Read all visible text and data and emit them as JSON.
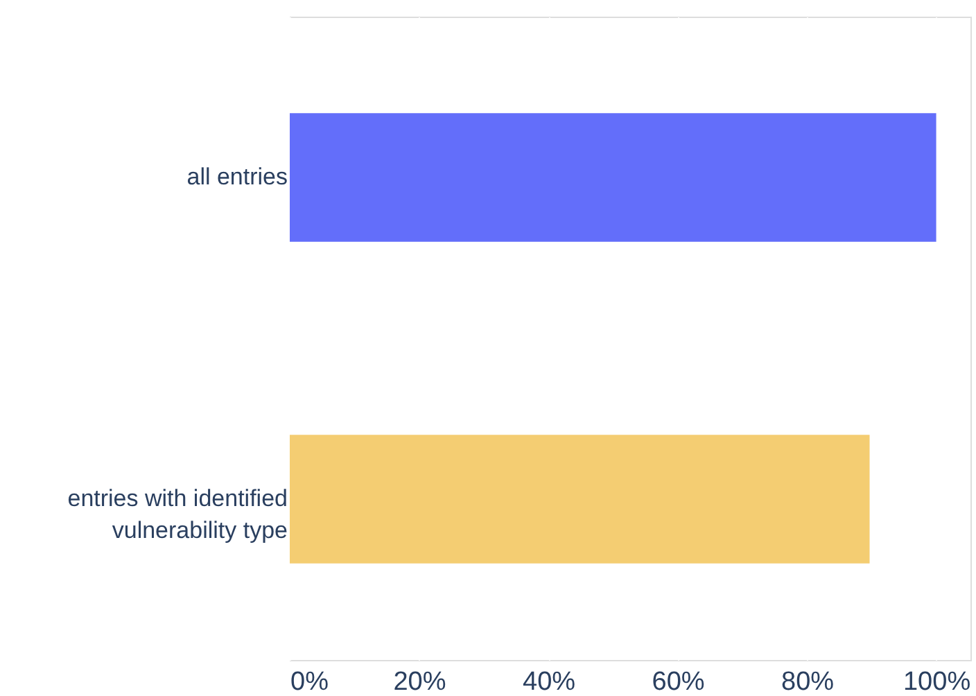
{
  "chart_data": {
    "type": "bar",
    "orientation": "horizontal",
    "categories": [
      "all entries",
      "entries with identified vulnerability type"
    ],
    "values": [
      100,
      89.7
    ],
    "colors": [
      "#636efa",
      "#f4cd72"
    ],
    "xlim": [
      0,
      105.3
    ],
    "xticks": [
      {
        "value": 0,
        "label": "0%"
      },
      {
        "value": 20,
        "label": "20%"
      },
      {
        "value": 40,
        "label": "40%"
      },
      {
        "value": 60,
        "label": "60%"
      },
      {
        "value": 80,
        "label": "80%"
      },
      {
        "value": 100,
        "label": "100%"
      }
    ],
    "grid": "x"
  }
}
